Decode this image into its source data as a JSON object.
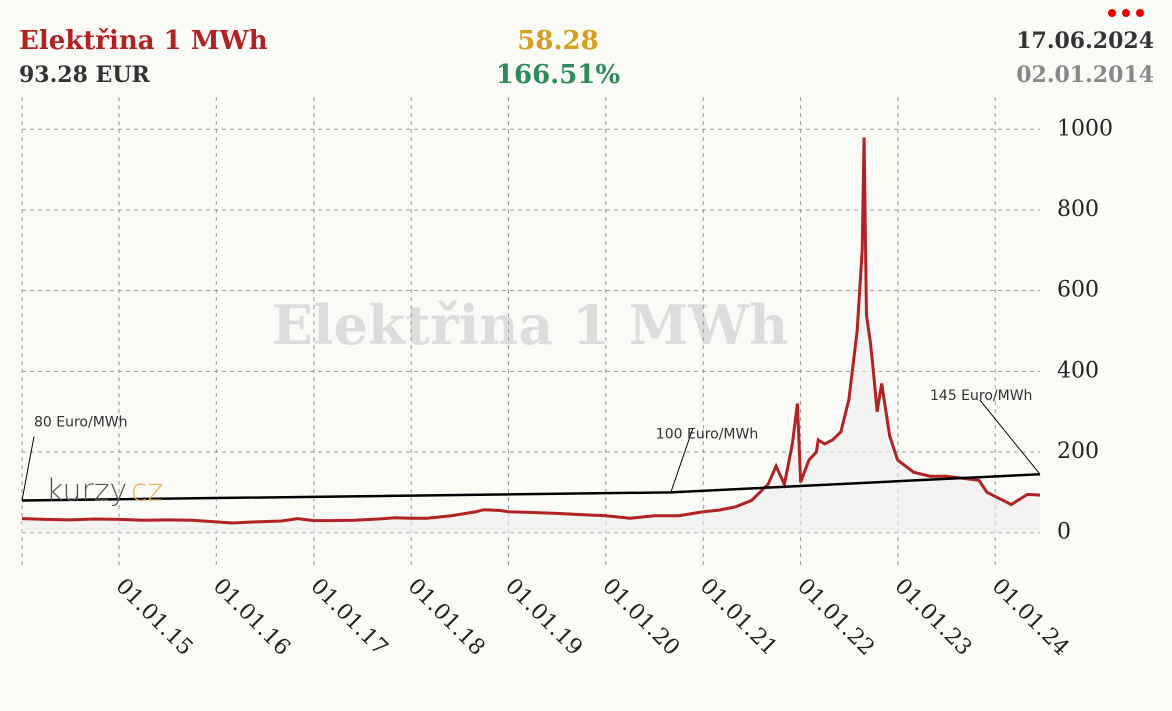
{
  "header": {
    "title": "Elektřina 1 MWh",
    "price": "93.28 EUR",
    "change": "58.28",
    "change_percent": "166.51%",
    "date_to": "17.06.2024",
    "date_from": "02.01.2014"
  },
  "logo": {
    "left": "kurzy",
    "right": "cz"
  },
  "chart_data": {
    "type": "line",
    "watermark": "Elektřina 1 MWh",
    "x": [
      "02.01.14",
      "01.04.14",
      "01.07.14",
      "01.10.14",
      "01.01.15",
      "01.04.15",
      "01.07.15",
      "01.10.15",
      "01.01.16",
      "01.03.16",
      "01.06.16",
      "01.09.16",
      "01.11.16",
      "01.01.17",
      "01.03.17",
      "01.06.17",
      "01.09.17",
      "01.11.17",
      "01.01.18",
      "01.03.18",
      "01.06.18",
      "01.09.18",
      "01.10.18",
      "01.12.18",
      "01.01.19",
      "01.04.19",
      "01.07.19",
      "01.10.19",
      "01.01.20",
      "01.04.20",
      "01.07.20",
      "01.10.20",
      "01.01.21",
      "01.03.21",
      "01.05.21",
      "01.07.21",
      "01.09.21",
      "01.10.21",
      "01.11.21",
      "01.12.21",
      "20.12.21",
      "01.01.22",
      "01.02.22",
      "01.03.22",
      "08.03.22",
      "01.04.22",
      "01.05.22",
      "01.06.22",
      "01.07.22",
      "01.08.22",
      "20.08.22",
      "27.08.22",
      "05.09.22",
      "20.09.22",
      "01.10.22",
      "15.10.22",
      "01.11.22",
      "01.12.22",
      "31.12.22",
      "01.03.23",
      "01.05.23",
      "01.07.23",
      "01.09.23",
      "01.11.23",
      "01.12.23",
      "01.01.24",
      "01.03.24",
      "01.05.24",
      "17.06.24"
    ],
    "series": [
      {
        "color": "#b22222",
        "values": [
          35,
          33,
          32,
          34,
          33,
          31,
          32,
          31,
          27,
          24,
          27,
          29,
          35,
          30,
          30,
          31,
          34,
          37,
          36,
          36,
          42,
          52,
          57,
          55,
          52,
          50,
          48,
          45,
          42,
          36,
          42,
          42,
          52,
          56,
          64,
          80,
          120,
          165,
          120,
          220,
          320,
          125,
          180,
          200,
          230,
          220,
          230,
          250,
          330,
          500,
          700,
          980,
          540,
          470,
          400,
          300,
          370,
          240,
          180,
          150,
          140,
          140,
          135,
          130,
          100,
          90,
          70,
          95,
          93.28
        ]
      }
    ],
    "trend": {
      "color": "#000000",
      "x": [
        "02.01.14",
        "01.09.20",
        "17.06.24"
      ],
      "values": [
        80,
        100,
        145
      ]
    },
    "annotations": [
      {
        "text": "80 Euro/MWh",
        "point": 0
      },
      {
        "text": "100 Euro/MWh",
        "point": 1
      },
      {
        "text": "145 Euro/MWh",
        "point": 2
      }
    ],
    "xlim": [
      "02.01.14",
      "17.06.24"
    ],
    "xticks": [
      "01.01.15",
      "01.01.16",
      "01.01.17",
      "01.01.18",
      "01.01.19",
      "01.01.20",
      "01.01.21",
      "01.01.22",
      "01.01.23",
      "01.01.24"
    ],
    "ylim": [
      -80,
      1080
    ],
    "yticks": [
      0,
      200,
      400,
      600,
      800,
      1000
    ],
    "grid": true
  }
}
